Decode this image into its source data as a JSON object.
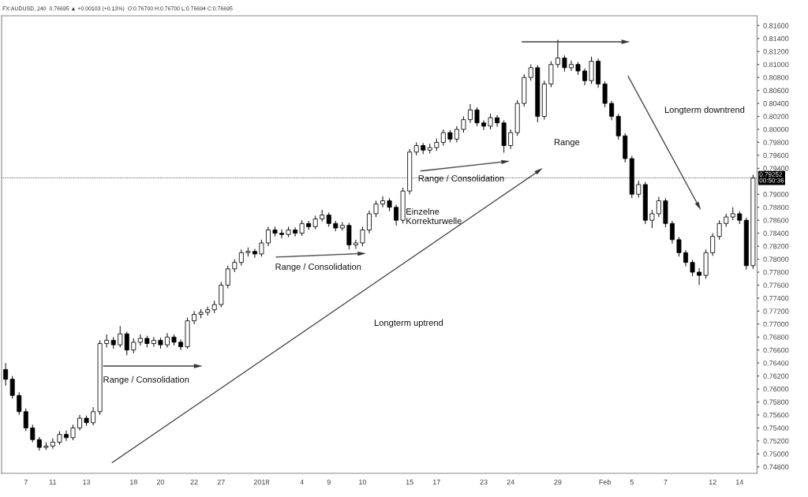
{
  "chart_data": {
    "type": "candlestick",
    "categories": [
      null,
      null,
      null,
      "7",
      null,
      null,
      null,
      "11",
      null,
      null,
      null,
      null,
      "13",
      null,
      null,
      null,
      null,
      null,
      null,
      "18",
      null,
      null,
      null,
      "20",
      null,
      null,
      null,
      null,
      "22",
      null,
      null,
      null,
      "27",
      null,
      null,
      null,
      null,
      null,
      "2018",
      null,
      null,
      null,
      null,
      null,
      "4",
      null,
      null,
      null,
      "9",
      null,
      null,
      null,
      null,
      "10",
      null,
      null,
      null,
      null,
      null,
      null,
      "15",
      null,
      null,
      null,
      "17",
      null,
      null,
      null,
      null,
      null,
      null,
      "23",
      null,
      null,
      null,
      "24",
      null,
      null,
      null,
      null,
      null,
      null,
      "29",
      null,
      null,
      null,
      null,
      null,
      null,
      "Feb",
      null,
      null,
      null,
      "5",
      null,
      null,
      null,
      null,
      "7",
      null,
      null,
      null,
      null,
      null,
      null,
      "12",
      null,
      null,
      null,
      "14",
      null,
      null
    ],
    "ohlc": [
      [
        0.763,
        0.764,
        0.7605,
        0.7615
      ],
      [
        0.7615,
        0.762,
        0.7585,
        0.759
      ],
      [
        0.759,
        0.7595,
        0.756,
        0.7565
      ],
      [
        0.7565,
        0.757,
        0.7535,
        0.754
      ],
      [
        0.754,
        0.7545,
        0.7518,
        0.7522
      ],
      [
        0.7522,
        0.7526,
        0.7505,
        0.751
      ],
      [
        0.751,
        0.7518,
        0.7506,
        0.7512
      ],
      [
        0.7512,
        0.7524,
        0.7508,
        0.7518
      ],
      [
        0.7518,
        0.7535,
        0.7514,
        0.753
      ],
      [
        0.753,
        0.7536,
        0.752,
        0.7525
      ],
      [
        0.7525,
        0.7545,
        0.7521,
        0.754
      ],
      [
        0.754,
        0.756,
        0.7536,
        0.7555
      ],
      [
        0.7555,
        0.7559,
        0.7543,
        0.7548
      ],
      [
        0.7548,
        0.7572,
        0.7544,
        0.7565
      ],
      [
        0.7565,
        0.7675,
        0.756,
        0.767
      ],
      [
        0.767,
        0.7684,
        0.7664,
        0.7675
      ],
      [
        0.7675,
        0.768,
        0.7662,
        0.7668
      ],
      [
        0.7668,
        0.7697,
        0.7664,
        0.7685
      ],
      [
        0.7685,
        0.7688,
        0.7652,
        0.766
      ],
      [
        0.766,
        0.7678,
        0.7655,
        0.7672
      ],
      [
        0.7672,
        0.7684,
        0.7667,
        0.7678
      ],
      [
        0.7678,
        0.7682,
        0.7664,
        0.767
      ],
      [
        0.767,
        0.768,
        0.7665,
        0.7675
      ],
      [
        0.7675,
        0.7679,
        0.7662,
        0.7668
      ],
      [
        0.7668,
        0.7686,
        0.7664,
        0.768
      ],
      [
        0.768,
        0.7684,
        0.7667,
        0.7672
      ],
      [
        0.7672,
        0.7676,
        0.766,
        0.7665
      ],
      [
        0.7665,
        0.771,
        0.7662,
        0.7705
      ],
      [
        0.7705,
        0.772,
        0.77,
        0.7715
      ],
      [
        0.7715,
        0.7723,
        0.7709,
        0.7718
      ],
      [
        0.7718,
        0.7727,
        0.7713,
        0.7722
      ],
      [
        0.7722,
        0.7736,
        0.7717,
        0.773
      ],
      [
        0.773,
        0.7765,
        0.7726,
        0.776
      ],
      [
        0.776,
        0.779,
        0.7755,
        0.7785
      ],
      [
        0.7785,
        0.78,
        0.778,
        0.7795
      ],
      [
        0.7795,
        0.7815,
        0.779,
        0.781
      ],
      [
        0.781,
        0.7818,
        0.7804,
        0.7812
      ],
      [
        0.7812,
        0.7816,
        0.7802,
        0.7808
      ],
      [
        0.7808,
        0.783,
        0.7804,
        0.7825
      ],
      [
        0.7825,
        0.785,
        0.782,
        0.7845
      ],
      [
        0.7845,
        0.785,
        0.7835,
        0.784
      ],
      [
        0.784,
        0.7846,
        0.7832,
        0.7838
      ],
      [
        0.7838,
        0.785,
        0.7834,
        0.7845
      ],
      [
        0.7845,
        0.7849,
        0.7835,
        0.784
      ],
      [
        0.784,
        0.786,
        0.7836,
        0.7855
      ],
      [
        0.7855,
        0.7859,
        0.7845,
        0.785
      ],
      [
        0.785,
        0.7867,
        0.7846,
        0.7862
      ],
      [
        0.7862,
        0.7876,
        0.7858,
        0.7868
      ],
      [
        0.7868,
        0.7872,
        0.785,
        0.7855
      ],
      [
        0.7855,
        0.7859,
        0.7843,
        0.7848
      ],
      [
        0.7848,
        0.7857,
        0.7844,
        0.7852
      ],
      [
        0.7852,
        0.7856,
        0.7815,
        0.7822
      ],
      [
        0.7822,
        0.783,
        0.7816,
        0.7825
      ],
      [
        0.7825,
        0.785,
        0.782,
        0.7845
      ],
      [
        0.7845,
        0.7875,
        0.784,
        0.787
      ],
      [
        0.787,
        0.789,
        0.7865,
        0.7885
      ],
      [
        0.7885,
        0.7897,
        0.788,
        0.789
      ],
      [
        0.789,
        0.7894,
        0.7874,
        0.788
      ],
      [
        0.788,
        0.7884,
        0.7852,
        0.786
      ],
      [
        0.786,
        0.791,
        0.7855,
        0.7905
      ],
      [
        0.7905,
        0.797,
        0.79,
        0.7965
      ],
      [
        0.7965,
        0.798,
        0.796,
        0.7975
      ],
      [
        0.7975,
        0.7979,
        0.7962,
        0.7968
      ],
      [
        0.7968,
        0.7978,
        0.7963,
        0.7972
      ],
      [
        0.7972,
        0.7986,
        0.7967,
        0.798
      ],
      [
        0.798,
        0.8,
        0.7975,
        0.7995
      ],
      [
        0.7995,
        0.7999,
        0.798,
        0.7985
      ],
      [
        0.7985,
        0.8005,
        0.798,
        0.8
      ],
      [
        0.8,
        0.802,
        0.7995,
        0.8015
      ],
      [
        0.8015,
        0.8039,
        0.801,
        0.803
      ],
      [
        0.803,
        0.8034,
        0.8005,
        0.801
      ],
      [
        0.801,
        0.8014,
        0.7999,
        0.8005
      ],
      [
        0.8005,
        0.8024,
        0.8,
        0.8018
      ],
      [
        0.8018,
        0.8022,
        0.8004,
        0.801
      ],
      [
        0.801,
        0.8014,
        0.7964,
        0.7975
      ],
      [
        0.7975,
        0.8,
        0.797,
        0.7995
      ],
      [
        0.7995,
        0.8045,
        0.799,
        0.804
      ],
      [
        0.804,
        0.8085,
        0.8035,
        0.808
      ],
      [
        0.808,
        0.81,
        0.8075,
        0.8095
      ],
      [
        0.8095,
        0.8099,
        0.8011,
        0.802
      ],
      [
        0.802,
        0.8075,
        0.8015,
        0.807
      ],
      [
        0.807,
        0.8105,
        0.8065,
        0.81
      ],
      [
        0.81,
        0.8138,
        0.8095,
        0.811
      ],
      [
        0.811,
        0.8114,
        0.8089,
        0.8095
      ],
      [
        0.8095,
        0.8106,
        0.809,
        0.81
      ],
      [
        0.81,
        0.8104,
        0.8084,
        0.809
      ],
      [
        0.809,
        0.8094,
        0.8068,
        0.8075
      ],
      [
        0.8075,
        0.8112,
        0.807,
        0.8105
      ],
      [
        0.8105,
        0.8109,
        0.8064,
        0.807
      ],
      [
        0.807,
        0.8074,
        0.8034,
        0.804
      ],
      [
        0.804,
        0.8044,
        0.8014,
        0.802
      ],
      [
        0.802,
        0.8024,
        0.7984,
        0.799
      ],
      [
        0.799,
        0.7994,
        0.7949,
        0.7955
      ],
      [
        0.7955,
        0.7959,
        0.7894,
        0.79
      ],
      [
        0.79,
        0.7921,
        0.7895,
        0.7915
      ],
      [
        0.7915,
        0.7919,
        0.7854,
        0.786
      ],
      [
        0.786,
        0.7876,
        0.7848,
        0.787
      ],
      [
        0.787,
        0.7896,
        0.7865,
        0.789
      ],
      [
        0.789,
        0.7894,
        0.7849,
        0.7855
      ],
      [
        0.7855,
        0.7859,
        0.7824,
        0.783
      ],
      [
        0.783,
        0.7834,
        0.7804,
        0.781
      ],
      [
        0.781,
        0.7814,
        0.7789,
        0.7795
      ],
      [
        0.7795,
        0.7799,
        0.7774,
        0.778
      ],
      [
        0.778,
        0.7786,
        0.776,
        0.7775
      ],
      [
        0.7775,
        0.7815,
        0.777,
        0.781
      ],
      [
        0.781,
        0.784,
        0.7805,
        0.7835
      ],
      [
        0.7835,
        0.786,
        0.783,
        0.7855
      ],
      [
        0.7855,
        0.787,
        0.785,
        0.7865
      ],
      [
        0.7865,
        0.788,
        0.786,
        0.787
      ],
      [
        0.787,
        0.7874,
        0.7854,
        0.786
      ],
      [
        0.786,
        0.7864,
        0.7784,
        0.779
      ],
      [
        0.779,
        0.793,
        0.7785,
        0.7925
      ]
    ],
    "ylim": [
      0.747,
      0.8175
    ],
    "yticks": [
      {
        "value": 0.748,
        "label": "0.74800"
      },
      {
        "value": 0.75,
        "label": "0.75000"
      },
      {
        "value": 0.752,
        "label": "0.75200"
      },
      {
        "value": 0.754,
        "label": "0.75400"
      },
      {
        "value": 0.756,
        "label": "0.75600"
      },
      {
        "value": 0.758,
        "label": "0.75800"
      },
      {
        "value": 0.76,
        "label": "0.76000"
      },
      {
        "value": 0.762,
        "label": "0.76200"
      },
      {
        "value": 0.764,
        "label": "0.76400"
      },
      {
        "value": 0.766,
        "label": "0.76600"
      },
      {
        "value": 0.768,
        "label": "0.76800"
      },
      {
        "value": 0.77,
        "label": "0.77000"
      },
      {
        "value": 0.772,
        "label": "0.77200"
      },
      {
        "value": 0.774,
        "label": "0.77400"
      },
      {
        "value": 0.776,
        "label": "0.77600"
      },
      {
        "value": 0.778,
        "label": "0.77800"
      },
      {
        "value": 0.78,
        "label": "0.78000"
      },
      {
        "value": 0.782,
        "label": "0.78200"
      },
      {
        "value": 0.784,
        "label": "0.78400"
      },
      {
        "value": 0.786,
        "label": "0.78600"
      },
      {
        "value": 0.788,
        "label": "0.78800"
      },
      {
        "value": 0.79,
        "label": "0.79000"
      },
      {
        "value": 0.794,
        "label": "0.79400"
      },
      {
        "value": 0.796,
        "label": "0.79600"
      },
      {
        "value": 0.798,
        "label": "0.79800"
      },
      {
        "value": 0.8,
        "label": "0.80000"
      },
      {
        "value": 0.802,
        "label": "0.80200"
      },
      {
        "value": 0.804,
        "label": "0.80400"
      },
      {
        "value": 0.806,
        "label": "0.80600"
      },
      {
        "value": 0.808,
        "label": "0.80800"
      },
      {
        "value": 0.81,
        "label": "0.81000"
      },
      {
        "value": 0.812,
        "label": "0.81200"
      },
      {
        "value": 0.814,
        "label": "0.81400"
      },
      {
        "value": 0.816,
        "label": "0.81600"
      }
    ],
    "ref_lines": [
      {
        "axis": "y",
        "value": 0.79252,
        "label": "0.79252\n00:50:36",
        "line_style": "dotted"
      }
    ],
    "annotations": [
      "Range / Consolidation",
      "Range / Consolidation",
      "Einzelne\nKorrekturwelle",
      "Range / Consolidation",
      "Longterm uptrend",
      "Range",
      "Longterm downtrend",
      "FX:AUDUSD, 240  0.76695 ▲ +0.00103 (+0.13%)  O:0.76700 H:0.76700 L:0.76694 C:0.76695"
    ],
    "grid": false
  }
}
